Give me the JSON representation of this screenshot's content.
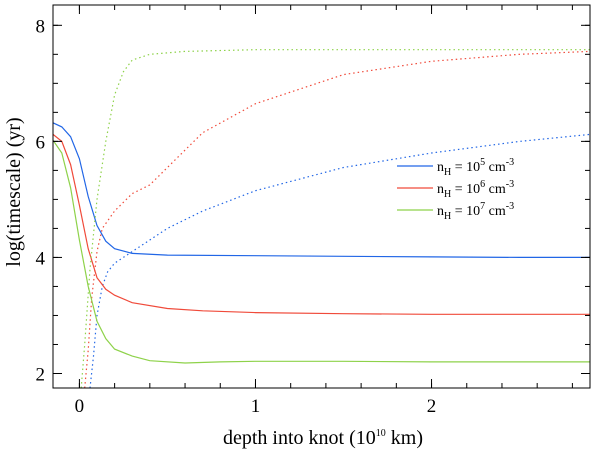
{
  "chart_data": {
    "type": "line",
    "xlabel": {
      "prefix": "depth into knot (10",
      "exp": "10",
      "suffix": " km)"
    },
    "ylabel": "log(timescale) (yr)",
    "xlim": [
      -0.15,
      2.9
    ],
    "ylim": [
      1.75,
      8.35
    ],
    "x_ticks": [
      0,
      1,
      2
    ],
    "x_tick_labels": [
      "0",
      "1",
      "2"
    ],
    "y_ticks": [
      2,
      4,
      6,
      8
    ],
    "y_tick_labels": [
      "2",
      "4",
      "6",
      "8"
    ],
    "x_minor_step": 0.2,
    "y_minor_step": 0.5,
    "grid": false,
    "legend_position": "right-middle",
    "series": [
      {
        "name": "n_H = 10^5 cm^-3",
        "legend": {
          "n": "n",
          "sub": "H",
          "mid": " = 10",
          "exp": "5",
          "unit": " cm",
          "uexp": "-3"
        },
        "color": "#2166e6",
        "solid": [
          [
            -0.15,
            6.32
          ],
          [
            -0.1,
            6.25
          ],
          [
            -0.05,
            6.08
          ],
          [
            0.0,
            5.7
          ],
          [
            0.05,
            5.05
          ],
          [
            0.1,
            4.55
          ],
          [
            0.15,
            4.28
          ],
          [
            0.2,
            4.15
          ],
          [
            0.3,
            4.07
          ],
          [
            0.5,
            4.04
          ],
          [
            1.0,
            4.03
          ],
          [
            1.5,
            4.02
          ],
          [
            2.0,
            4.01
          ],
          [
            2.5,
            4.0
          ],
          [
            2.9,
            4.0
          ]
        ],
        "dotted": [
          [
            0.06,
            1.75
          ],
          [
            0.08,
            2.3
          ],
          [
            0.1,
            3.0
          ],
          [
            0.13,
            3.5
          ],
          [
            0.16,
            3.75
          ],
          [
            0.2,
            3.9
          ],
          [
            0.3,
            4.1
          ],
          [
            0.4,
            4.3
          ],
          [
            0.5,
            4.5
          ],
          [
            0.7,
            4.8
          ],
          [
            1.0,
            5.15
          ],
          [
            1.5,
            5.55
          ],
          [
            2.0,
            5.8
          ],
          [
            2.5,
            6.0
          ],
          [
            2.9,
            6.12
          ]
        ]
      },
      {
        "name": "n_H = 10^6 cm^-3",
        "legend": {
          "n": "n",
          "sub": "H",
          "mid": " = 10",
          "exp": "6",
          "unit": " cm",
          "uexp": "-3"
        },
        "color": "#f04a3a",
        "solid": [
          [
            -0.15,
            6.12
          ],
          [
            -0.1,
            6.0
          ],
          [
            -0.05,
            5.6
          ],
          [
            0.0,
            4.9
          ],
          [
            0.05,
            4.15
          ],
          [
            0.1,
            3.65
          ],
          [
            0.15,
            3.45
          ],
          [
            0.2,
            3.35
          ],
          [
            0.3,
            3.22
          ],
          [
            0.5,
            3.12
          ],
          [
            0.7,
            3.08
          ],
          [
            1.0,
            3.05
          ],
          [
            1.5,
            3.03
          ],
          [
            2.0,
            3.02
          ],
          [
            2.5,
            3.02
          ],
          [
            2.9,
            3.02
          ]
        ],
        "dotted": [
          [
            0.03,
            1.75
          ],
          [
            0.05,
            2.4
          ],
          [
            0.07,
            3.3
          ],
          [
            0.1,
            4.1
          ],
          [
            0.13,
            4.5
          ],
          [
            0.2,
            4.8
          ],
          [
            0.3,
            5.1
          ],
          [
            0.4,
            5.25
          ],
          [
            0.5,
            5.55
          ],
          [
            0.7,
            6.15
          ],
          [
            1.0,
            6.65
          ],
          [
            1.5,
            7.15
          ],
          [
            2.0,
            7.38
          ],
          [
            2.5,
            7.5
          ],
          [
            2.9,
            7.55
          ]
        ]
      },
      {
        "name": "n_H = 10^7 cm^-3",
        "legend": {
          "n": "n",
          "sub": "H",
          "mid": " = 10",
          "exp": "7",
          "unit": " cm",
          "uexp": "-3"
        },
        "color": "#8ed24a",
        "solid": [
          [
            -0.15,
            6.02
          ],
          [
            -0.1,
            5.8
          ],
          [
            -0.05,
            5.2
          ],
          [
            0.0,
            4.3
          ],
          [
            0.05,
            3.5
          ],
          [
            0.1,
            2.9
          ],
          [
            0.15,
            2.6
          ],
          [
            0.2,
            2.42
          ],
          [
            0.3,
            2.3
          ],
          [
            0.4,
            2.22
          ],
          [
            0.6,
            2.18
          ],
          [
            0.8,
            2.2
          ],
          [
            1.0,
            2.21
          ],
          [
            1.5,
            2.21
          ],
          [
            2.0,
            2.2
          ],
          [
            2.5,
            2.2
          ],
          [
            2.9,
            2.2
          ]
        ],
        "dotted": [
          [
            0.01,
            1.75
          ],
          [
            0.03,
            2.5
          ],
          [
            0.06,
            3.8
          ],
          [
            0.1,
            5.0
          ],
          [
            0.15,
            6.0
          ],
          [
            0.2,
            6.8
          ],
          [
            0.25,
            7.2
          ],
          [
            0.3,
            7.4
          ],
          [
            0.4,
            7.5
          ],
          [
            0.6,
            7.55
          ],
          [
            1.0,
            7.58
          ],
          [
            2.0,
            7.58
          ],
          [
            2.9,
            7.58
          ]
        ]
      }
    ]
  }
}
